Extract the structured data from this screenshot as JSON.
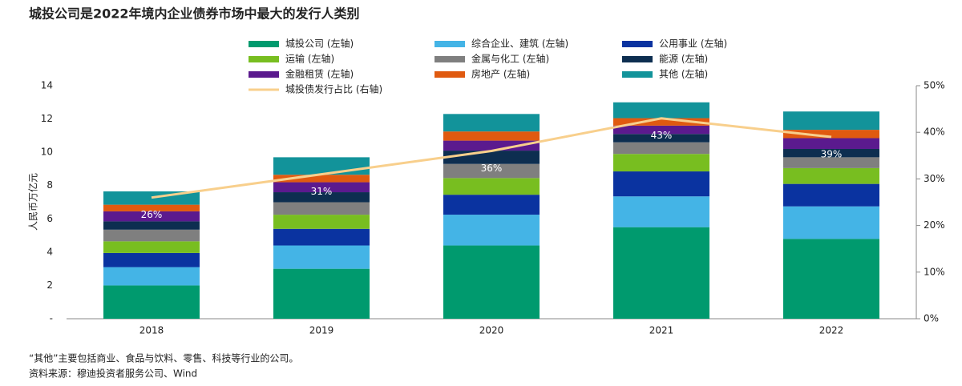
{
  "chart_data": {
    "type": "bar",
    "stacked": true,
    "title": "城投公司是2022年境内企业债券市场中最大的发行人类别",
    "y_label": "人民币万亿元",
    "footnotes": [
      "“其他”主要包括商业、食品与饮料、零售、科技等行业的公司。",
      "资料来源：穆迪投资者服务公司、Wind"
    ],
    "categories": [
      "2018",
      "2019",
      "2020",
      "2021",
      "2022"
    ],
    "ylim": [
      0,
      14
    ],
    "yticks": [
      {
        "value": 0,
        "label": "-"
      },
      2,
      4,
      6,
      8,
      10,
      12,
      14
    ],
    "y2lim": [
      0,
      50
    ],
    "y2ticks": [
      {
        "value": 0,
        "label": "0%"
      },
      {
        "value": 10,
        "label": "10%"
      },
      {
        "value": 20,
        "label": "20%"
      },
      {
        "value": 30,
        "label": "30%"
      },
      {
        "value": 40,
        "label": "40%"
      },
      {
        "value": 50,
        "label": "50%"
      }
    ],
    "series": [
      {
        "name": "城投公司 (左轴)",
        "color": "#009a6e",
        "values": [
          2.0,
          3.0,
          4.4,
          5.5,
          4.8
        ]
      },
      {
        "name": "综合企业、建筑 (左轴)",
        "color": "#44b4e6",
        "values": [
          1.1,
          1.4,
          1.85,
          1.85,
          1.95
        ]
      },
      {
        "name": "公用事业 (左轴)",
        "color": "#0a33a0",
        "values": [
          0.85,
          1.0,
          1.2,
          1.5,
          1.35
        ]
      },
      {
        "name": "运输 (左轴)",
        "color": "#78be20",
        "values": [
          0.7,
          0.85,
          1.0,
          1.05,
          0.95
        ]
      },
      {
        "name": "金属与化工 (左轴)",
        "color": "#7f7f7f",
        "values": [
          0.7,
          0.75,
          0.85,
          0.7,
          0.65
        ]
      },
      {
        "name": "能源 (左轴)",
        "color": "#0d2e50",
        "values": [
          0.5,
          0.6,
          0.8,
          0.5,
          0.5
        ]
      },
      {
        "name": "金融租赁 (左轴)",
        "color": "#5b1a8e",
        "values": [
          0.6,
          0.6,
          0.6,
          0.5,
          0.65
        ]
      },
      {
        "name": "房地产 (左轴)",
        "color": "#e05a10",
        "values": [
          0.4,
          0.45,
          0.55,
          0.45,
          0.5
        ]
      },
      {
        "name": "其他 (左轴)",
        "color": "#12939a",
        "values": [
          0.8,
          1.05,
          1.05,
          0.95,
          1.1
        ]
      },
      {
        "name": "城投债发行占比 (右轴)",
        "type": "line",
        "axis": "y2",
        "color": "#f8cf8c",
        "values": [
          26,
          31,
          36,
          43,
          39
        ],
        "value_labels": [
          "26%",
          "31%",
          "36%",
          "43%",
          "39%"
        ]
      }
    ]
  }
}
